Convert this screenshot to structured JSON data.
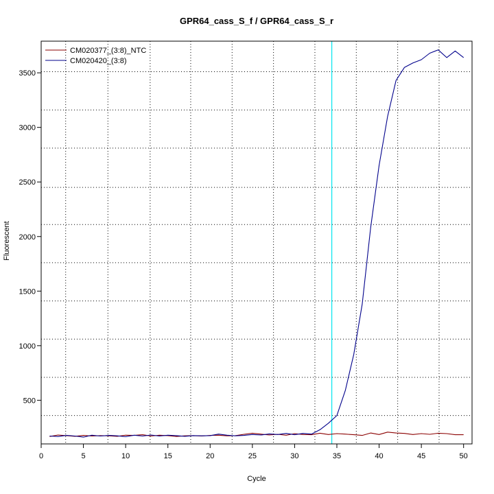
{
  "chart_data": {
    "type": "line",
    "title": "GPR64_cass_S_f / GPR64_cass_S_r",
    "xlabel": "Cycle",
    "ylabel": "Fluorescent",
    "xlim": [
      0,
      51
    ],
    "ylim": [
      100,
      3790
    ],
    "x_ticks": [
      0,
      5,
      10,
      15,
      20,
      25,
      30,
      35,
      40,
      45,
      50
    ],
    "y_ticks": [
      500,
      1000,
      1500,
      2000,
      2500,
      3000,
      3500
    ],
    "x_grid_dotted": [
      2.9,
      7.9,
      12.9,
      17.7,
      22.6,
      27.5,
      32.4,
      37.3,
      42.2,
      47.1
    ],
    "y_grid_dotted": [
      360,
      710,
      1060,
      1410,
      1760,
      2110,
      2450,
      2810,
      3160,
      3510
    ],
    "threshold_cycle": 34.4,
    "threshold_color": "#00e5ee",
    "legend_position": "top-left",
    "series": [
      {
        "name": "CM020377_(3:8)_NTC",
        "color": "#8b0000",
        "x": [
          1,
          2,
          3,
          4,
          5,
          6,
          7,
          8,
          9,
          10,
          11,
          12,
          13,
          14,
          15,
          16,
          17,
          18,
          19,
          20,
          21,
          22,
          23,
          24,
          25,
          26,
          27,
          28,
          29,
          30,
          31,
          32,
          33,
          34,
          35,
          36,
          37,
          38,
          39,
          40,
          41,
          42,
          43,
          44,
          45,
          46,
          47,
          48,
          49,
          50
        ],
        "values": [
          168,
          182,
          176,
          170,
          178,
          172,
          176,
          174,
          170,
          180,
          178,
          184,
          172,
          180,
          176,
          168,
          174,
          176,
          172,
          178,
          180,
          174,
          176,
          188,
          198,
          190,
          182,
          188,
          180,
          194,
          186,
          184,
          198,
          186,
          194,
          190,
          184,
          178,
          200,
          186,
          208,
          200,
          196,
          186,
          194,
          188,
          198,
          194,
          184,
          184
        ]
      },
      {
        "name": "CM020420_(3:8)",
        "color": "#00008b",
        "x": [
          1,
          2,
          3,
          4,
          5,
          6,
          7,
          8,
          9,
          10,
          11,
          12,
          13,
          14,
          15,
          16,
          17,
          18,
          19,
          20,
          21,
          22,
          23,
          24,
          25,
          26,
          27,
          28,
          29,
          30,
          31,
          32,
          33,
          34,
          35,
          36,
          37,
          38,
          39,
          40,
          41,
          42,
          43,
          44,
          45,
          46,
          47,
          48,
          49,
          50
        ],
        "values": [
          172,
          168,
          178,
          172,
          162,
          180,
          172,
          178,
          174,
          166,
          180,
          172,
          182,
          172,
          180,
          176,
          170,
          176,
          174,
          176,
          190,
          180,
          174,
          178,
          186,
          182,
          192,
          186,
          196,
          184,
          196,
          190,
          230,
          290,
          360,
          590,
          920,
          1380,
          2080,
          2650,
          3100,
          3430,
          3550,
          3590,
          3620,
          3680,
          3710,
          3640,
          3700,
          3640
        ]
      }
    ]
  }
}
